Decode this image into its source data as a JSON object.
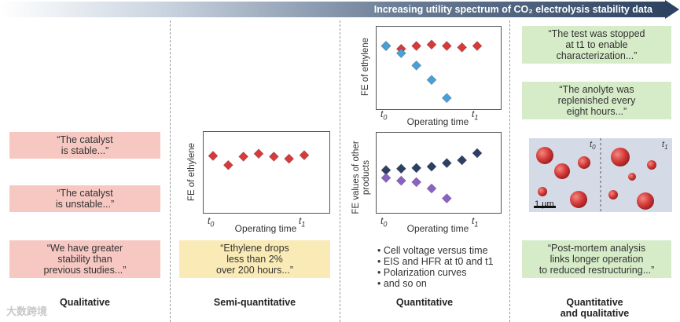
{
  "header": {
    "arrow_title": "Increasing utility spectrum of CO₂ electrolysis stability data"
  },
  "columns": [
    {
      "title": "Qualitative"
    },
    {
      "title": "Semi-quantitative"
    },
    {
      "title": "Quantitative"
    },
    {
      "title": "Quantitative\nand qualitative"
    }
  ],
  "qualitative": {
    "quotes": [
      "“The catalyst\nis stable...”",
      "“The catalyst\nis unstable...”",
      "“We have greater\nstability than\nprevious studies...”"
    ]
  },
  "semi_quantitative": {
    "quote": "“Ethylene drops\nless than 2%\nover 200 hours...”"
  },
  "plots": {
    "ylabel_ethylene": "FE of ethylene",
    "ylabel_other": "FE values of other\nproducts",
    "xlabel": "Operating time",
    "t0": "t0",
    "t1": "t1"
  },
  "chart_data": [
    {
      "type": "scatter",
      "ylabel": "FE of ethylene",
      "xlabel": "Operating time",
      "x_ticks": [
        "t0",
        "t1"
      ],
      "series": [
        {
          "values": [
            0.75,
            0.62,
            0.74,
            0.78,
            0.74,
            0.71,
            0.76
          ],
          "color": "#d63a3a"
        }
      ],
      "ylim": [
        0,
        1
      ]
    },
    {
      "type": "scatter",
      "ylabel": "FE of ethylene",
      "xlabel": "Operating time",
      "x_ticks": [
        "t0",
        "t1"
      ],
      "series": [
        {
          "values": [
            0.82,
            0.78,
            0.82,
            0.84,
            0.82,
            0.8,
            0.82
          ],
          "color": "#d63a3a"
        },
        {
          "values": [
            0.82,
            0.72,
            0.55,
            0.35,
            0.1
          ],
          "color": "#4a9fd6"
        }
      ],
      "ylim": [
        0,
        1
      ]
    },
    {
      "type": "scatter",
      "ylabel": "FE values of other\nproducts",
      "xlabel": "Operating time",
      "x_ticks": [
        "t0",
        "t1"
      ],
      "series": [
        {
          "values": [
            0.56,
            0.58,
            0.59,
            0.61,
            0.66,
            0.7,
            0.8
          ],
          "color": "#2d3f63"
        },
        {
          "values": [
            0.45,
            0.41,
            0.39,
            0.3,
            0.16
          ],
          "color": "#8a63c2"
        }
      ],
      "ylim": [
        0,
        1
      ]
    }
  ],
  "quantitative": {
    "bullets": [
      "Cell voltage versus time",
      "EIS and HFR at t0 and t1",
      "Polarization curves",
      "and so on"
    ]
  },
  "quant_qual": {
    "quotes": [
      "“The test was stopped\nat t1 to enable\ncharacterization...”",
      "“The anolyte was\nreplenished every\neight hours...”",
      "“Post-mortem analysis\nlinks longer operation\nto reduced restructuring...”"
    ],
    "micrograph": {
      "t0": "t0",
      "t1": "t1",
      "scale": "1 µm"
    }
  },
  "watermark": "大数跨境",
  "colors": {
    "red_card": "#f7c8c2",
    "yellow_card": "#faebb6",
    "green_card": "#d6ecc8",
    "ethylene_marker": "#d63a3a",
    "decline_marker": "#4a9fd6",
    "other_up_marker": "#2d3f63",
    "other_down_marker": "#8a63c2"
  }
}
